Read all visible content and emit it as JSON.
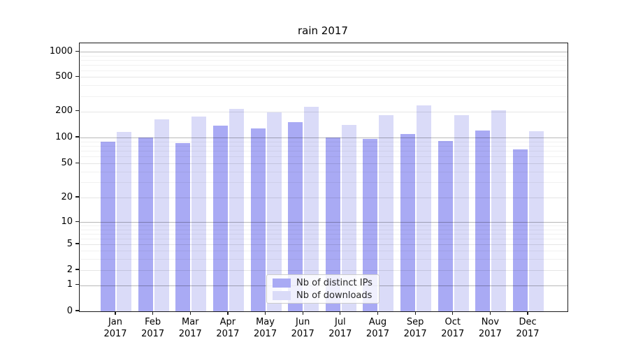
{
  "title": "rain 2017",
  "chart_data": {
    "type": "bar",
    "title": "rain 2017",
    "categories": [
      "Jan 2017",
      "Feb 2017",
      "Mar 2017",
      "Apr 2017",
      "May 2017",
      "Jun 2017",
      "Jul 2017",
      "Aug 2017",
      "Sep 2017",
      "Oct 2017",
      "Nov 2017",
      "Dec 2017"
    ],
    "x_tick_months": [
      "Jan",
      "Feb",
      "Mar",
      "Apr",
      "May",
      "Jun",
      "Jul",
      "Aug",
      "Sep",
      "Oct",
      "Nov",
      "Dec"
    ],
    "x_tick_year": "2017",
    "series": [
      {
        "name": "Nb of distinct IPs",
        "color": "#a9aaf4",
        "values": [
          90,
          100,
          87,
          137,
          128,
          151,
          100,
          96,
          110,
          92,
          121,
          73
        ]
      },
      {
        "name": "Nb of downloads",
        "color": "#dadbf8",
        "values": [
          115,
          161,
          176,
          216,
          194,
          225,
          141,
          182,
          237,
          182,
          206,
          118
        ]
      }
    ],
    "yscale": "log-with-zero",
    "y_ticks": [
      0,
      1,
      2,
      5,
      10,
      20,
      50,
      100,
      200,
      500,
      1000
    ],
    "ylim": [
      0,
      1300
    ],
    "grid": true,
    "legend_position": "lower center"
  },
  "colors": {
    "grid_major": "rgba(0,0,0,0.28)",
    "grid_mid": "rgba(0,0,0,0.10)",
    "grid_minor": "rgba(0,0,0,0.055)",
    "axis": "#1a1a1a",
    "background": "#ffffff"
  }
}
